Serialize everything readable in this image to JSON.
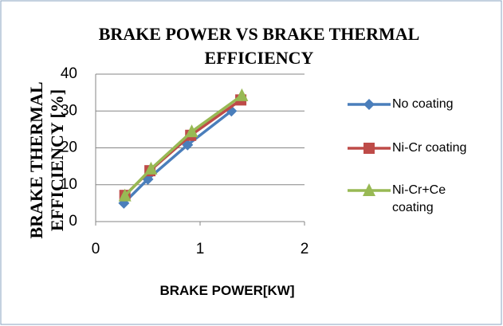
{
  "chart_data": {
    "type": "line",
    "title": "BRAKE POWER VS BRAKE THERMAL EFFICIENCY",
    "x_label": "BRAKE POWER[KW]",
    "y_label": "BRAKE THERMAL EFFICIENCY [%]",
    "xlim": [
      0,
      2
    ],
    "xticks": [
      0,
      1,
      2
    ],
    "ylim": [
      0,
      40
    ],
    "yticks": [
      0,
      10,
      20,
      30,
      40
    ],
    "grid": true,
    "legend": "right",
    "series": [
      {
        "name": "No coating",
        "color": "#4a7ebb",
        "marker": "diamond",
        "x": [
          0.27,
          0.5,
          0.88,
          1.3
        ],
        "values": [
          5,
          11.5,
          20.8,
          30
        ]
      },
      {
        "name": "Ni-Cr coating",
        "color": "#be4b48",
        "marker": "square",
        "x": [
          0.28,
          0.52,
          0.91,
          1.39
        ],
        "values": [
          7.1,
          13.8,
          23.4,
          33
        ]
      },
      {
        "name": "Ni-Cr+Ce coating",
        "color": "#98b954",
        "marker": "triangle",
        "x": [
          0.28,
          0.53,
          0.92,
          1.4
        ],
        "values": [
          7,
          14.3,
          24.4,
          34.2
        ]
      }
    ]
  }
}
